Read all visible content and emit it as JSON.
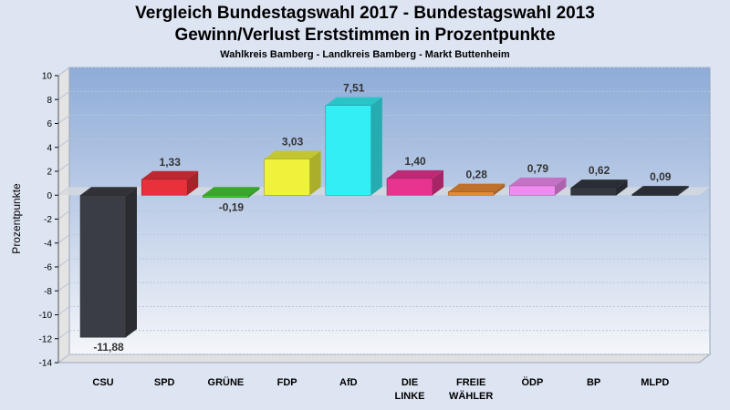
{
  "chart_data": {
    "type": "bar",
    "title": "Vergleich Bundestagswahl 2017 - Bundestagswahl 2013",
    "subtitle": "Gewinn/Verlust Erststimmen in Prozentpunkte",
    "subtitle2": "Wahlkreis Bamberg - Landkreis Bamberg - Markt Buttenheim",
    "ylabel": "Prozentpunkte",
    "xlabel": "",
    "ylim": [
      -14,
      10
    ],
    "yticks": [
      10,
      8,
      6,
      4,
      2,
      0,
      -2,
      -4,
      -6,
      -8,
      -10,
      -12,
      -14
    ],
    "grid": true,
    "categories": [
      {
        "name": "CSU",
        "name2": "",
        "value": -11.88,
        "label": "-11,88",
        "color": "#3a3d44"
      },
      {
        "name": "SPD",
        "name2": "",
        "value": 1.33,
        "label": "1,33",
        "color": "#e8313a"
      },
      {
        "name": "GRÜNE",
        "name2": "",
        "value": -0.19,
        "label": "-0,19",
        "color": "#44cc33"
      },
      {
        "name": "FDP",
        "name2": "",
        "value": 3.03,
        "label": "3,03",
        "color": "#eef23a"
      },
      {
        "name": "AfD",
        "name2": "",
        "value": 7.51,
        "label": "7,51",
        "color": "#33eef4"
      },
      {
        "name": "DIE",
        "name2": "LINKE",
        "value": 1.4,
        "label": "1,40",
        "color": "#e8338f"
      },
      {
        "name": "FREIE",
        "name2": "WÄHLER",
        "value": 0.28,
        "label": "0,28",
        "color": "#e88a33"
      },
      {
        "name": "ÖDP",
        "name2": "",
        "value": 0.79,
        "label": "0,79",
        "color": "#f08af0"
      },
      {
        "name": "BP",
        "name2": "",
        "value": 0.62,
        "label": "0,62",
        "color": "#333840"
      },
      {
        "name": "MLPD",
        "name2": "",
        "value": 0.09,
        "label": "0,09",
        "color": "#333840"
      }
    ]
  }
}
